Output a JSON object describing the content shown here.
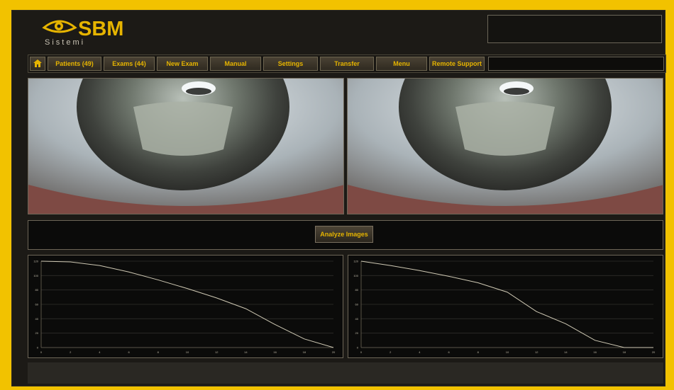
{
  "app": {
    "logo_text": "SBM",
    "logo_sub": "Sistemi"
  },
  "menu": {
    "tabs": [
      {
        "label": "Patients (49)"
      },
      {
        "label": "Exams (44)"
      },
      {
        "label": "New Exam"
      },
      {
        "label": "Manual"
      },
      {
        "label": "Settings"
      },
      {
        "label": "Transfer"
      },
      {
        "label": "Menu"
      },
      {
        "label": "Remote Support"
      }
    ]
  },
  "images": {
    "analyze_label": "Analyze Images"
  },
  "chart_data": [
    {
      "type": "line",
      "x": [
        0,
        1,
        2,
        3,
        4,
        5,
        6,
        7,
        8,
        9,
        10
      ],
      "x_ticks": [
        "0",
        "2",
        "4",
        "6",
        "8",
        "10",
        "12",
        "14",
        "16",
        "18",
        "20"
      ],
      "y_ticks": [
        "0",
        "20",
        "40",
        "60",
        "80",
        "100",
        "120"
      ],
      "xlim": [
        0,
        10
      ],
      "ylim": [
        0,
        120
      ],
      "series": [
        {
          "values": [
            120,
            119,
            114,
            105,
            94,
            82,
            69,
            54,
            32,
            12,
            0
          ]
        }
      ]
    },
    {
      "type": "line",
      "x": [
        0,
        1,
        2,
        3,
        4,
        5,
        6,
        7,
        8,
        9,
        10
      ],
      "x_ticks": [
        "0",
        "2",
        "4",
        "6",
        "8",
        "10",
        "12",
        "14",
        "16",
        "18",
        "20"
      ],
      "y_ticks": [
        "0",
        "20",
        "40",
        "60",
        "80",
        "100",
        "120"
      ],
      "xlim": [
        0,
        10
      ],
      "ylim": [
        0,
        120
      ],
      "series": [
        {
          "values": [
            120,
            114,
            107,
            99,
            90,
            77,
            50,
            33,
            10,
            0,
            0
          ]
        }
      ]
    }
  ]
}
